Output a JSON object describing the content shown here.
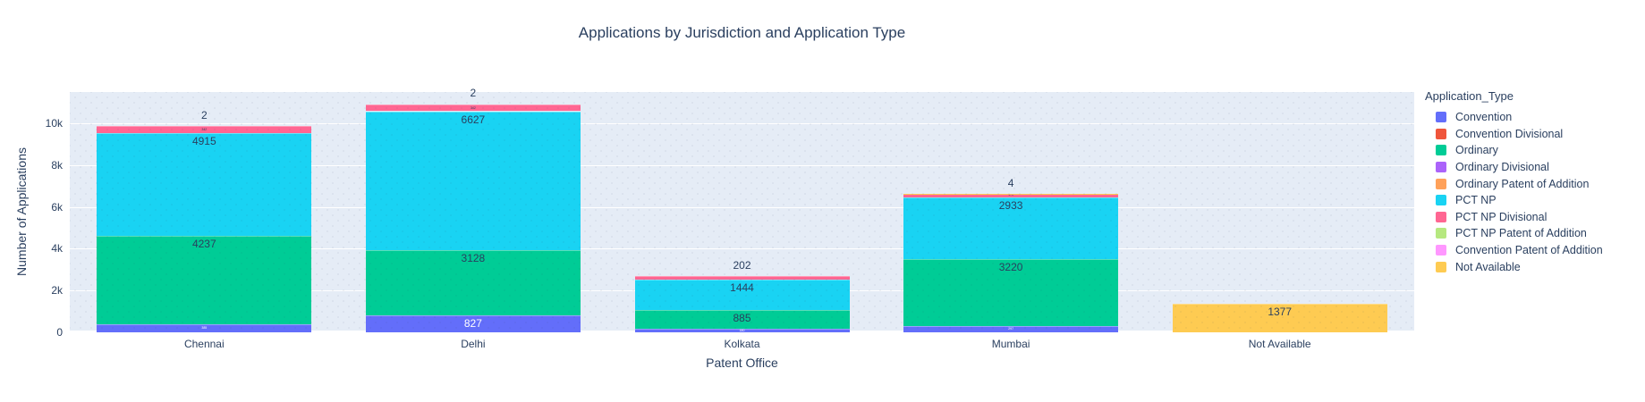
{
  "chart_data": {
    "type": "bar",
    "stacked": true,
    "title": "Applications by Jurisdiction and Application Type",
    "xlabel": "Patent Office",
    "ylabel": "Number of Applications",
    "legend_title": "Application_Type",
    "legend_position": "right",
    "grid": true,
    "ylim": [
      0,
      11500
    ],
    "yticks": [
      {
        "value": 0,
        "label": "0"
      },
      {
        "value": 2000,
        "label": "2k"
      },
      {
        "value": 4000,
        "label": "4k"
      },
      {
        "value": 6000,
        "label": "6k"
      },
      {
        "value": 8000,
        "label": "8k"
      },
      {
        "value": 10000,
        "label": "10k"
      }
    ],
    "categories": [
      "Chennai",
      "Delhi",
      "Kolkata",
      "Mumbai",
      "Not Available"
    ],
    "series": [
      {
        "name": "Convention",
        "color": "#636EFA",
        "label_color": "#ffffff",
        "values": [
          385,
          827,
          180,
          297,
          0
        ],
        "inside_labels": [
          "385",
          "827",
          "180",
          "297",
          null
        ]
      },
      {
        "name": "Convention Divisional",
        "color": "#EF553B",
        "values": [
          0,
          0,
          0,
          0,
          0
        ],
        "inside_labels": [
          null,
          null,
          null,
          null,
          null
        ]
      },
      {
        "name": "Ordinary",
        "color": "#00CC96",
        "values": [
          4237,
          3128,
          885,
          3220,
          0
        ],
        "inside_labels": [
          "4237",
          "3128",
          "885",
          "3220",
          null
        ]
      },
      {
        "name": "Ordinary Divisional",
        "color": "#AB63FA",
        "values": [
          0,
          0,
          0,
          0,
          0
        ],
        "inside_labels": [
          null,
          null,
          null,
          null,
          null
        ]
      },
      {
        "name": "Ordinary Patent of Addition",
        "color": "#FFA15A",
        "values": [
          0,
          0,
          0,
          0,
          0
        ],
        "inside_labels": [
          null,
          null,
          null,
          null,
          null
        ]
      },
      {
        "name": "PCT NP",
        "color": "#19D3F3",
        "values": [
          4915,
          6627,
          1444,
          2933,
          0
        ],
        "inside_labels": [
          "4915",
          "6627",
          "1444",
          "2933",
          null
        ]
      },
      {
        "name": "PCT NP Divisional",
        "color": "#FF6692",
        "values": [
          342,
          342,
          202,
          170,
          0
        ],
        "inside_labels": [
          "342",
          "342",
          null,
          "170",
          null
        ]
      },
      {
        "name": "PCT NP Patent of Addition",
        "color": "#B6E880",
        "values": [
          0,
          0,
          0,
          0,
          0
        ],
        "inside_labels": [
          null,
          null,
          null,
          null,
          null
        ]
      },
      {
        "name": "Convention Patent of Addition",
        "color": "#FF97FF",
        "values": [
          0,
          0,
          0,
          0,
          0
        ],
        "inside_labels": [
          null,
          null,
          null,
          null,
          null
        ]
      },
      {
        "name": "Not Available",
        "color": "#FECB52",
        "values": [
          2,
          2,
          0,
          4,
          1377
        ],
        "inside_labels": [
          null,
          null,
          null,
          null,
          "1377"
        ]
      }
    ],
    "outside_labels": [
      "2",
      "2",
      "202",
      "4",
      null
    ]
  },
  "colors": {
    "text": "#2a3f5f",
    "plot_bg": "#E5ECF6",
    "grid": "#ffffff"
  }
}
